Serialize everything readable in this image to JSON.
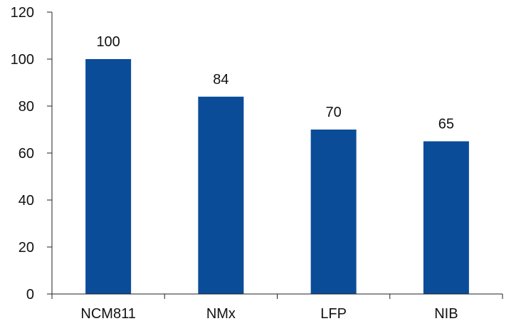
{
  "chart_data": {
    "type": "bar",
    "categories": [
      "NCM811",
      "NMx",
      "LFP",
      "NIB"
    ],
    "values": [
      100,
      84,
      70,
      65
    ],
    "data_labels": [
      "100",
      "84",
      "70",
      "65"
    ],
    "title": "",
    "xlabel": "",
    "ylabel": "",
    "ylim": [
      0,
      120
    ],
    "yticks": [
      0,
      20,
      40,
      60,
      80,
      100,
      120
    ],
    "grid": false,
    "legend": "none",
    "bar_color": "#0B4C99",
    "axis_color": "#222222"
  }
}
